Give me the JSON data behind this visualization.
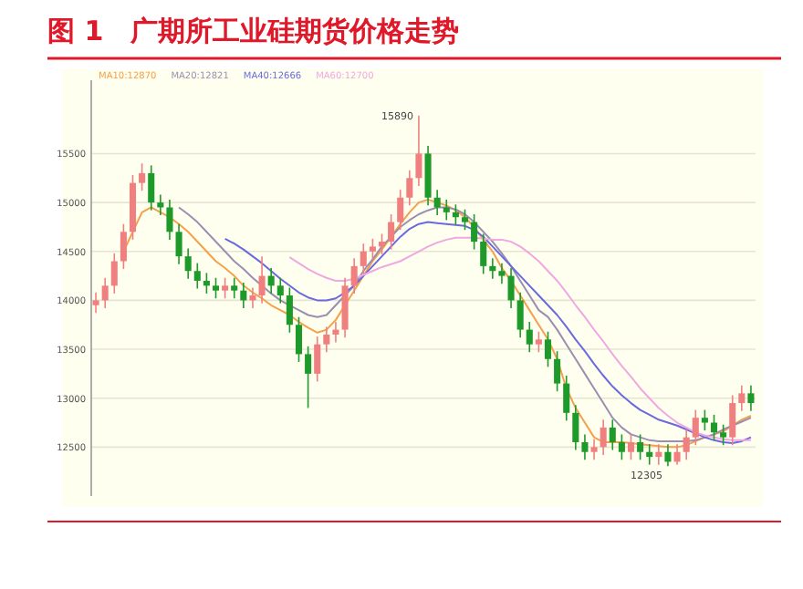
{
  "chart_data": {
    "type": "candlestick",
    "title": "图 1　广期所工业硅期货价格走势",
    "categories": [
      null,
      null,
      null,
      null,
      null,
      null,
      null,
      null,
      null,
      null,
      null,
      null,
      null,
      null,
      null,
      null,
      null,
      null,
      null,
      null,
      null,
      null,
      null,
      null,
      null,
      null,
      null,
      null,
      null,
      null,
      null,
      null,
      null,
      null,
      null,
      null,
      null,
      null,
      null,
      null,
      null,
      null,
      null,
      null,
      null,
      null,
      null,
      null,
      null,
      null,
      null,
      null,
      null,
      null,
      null,
      null,
      null,
      null,
      null,
      null,
      null,
      null,
      null,
      null,
      null,
      null,
      null,
      null,
      null,
      null,
      null,
      null
    ],
    "ohlc": [
      [
        13950,
        14080,
        13870,
        14000
      ],
      [
        14000,
        14230,
        13920,
        14150
      ],
      [
        14150,
        14480,
        14070,
        14400
      ],
      [
        14400,
        14780,
        14320,
        14700
      ],
      [
        14700,
        15280,
        14620,
        15200
      ],
      [
        15200,
        15400,
        15120,
        15300
      ],
      [
        15300,
        15380,
        14920,
        15000
      ],
      [
        15000,
        15080,
        14870,
        14950
      ],
      [
        14950,
        15030,
        14620,
        14700
      ],
      [
        14700,
        14780,
        14370,
        14450
      ],
      [
        14450,
        14530,
        14220,
        14300
      ],
      [
        14300,
        14380,
        14120,
        14200
      ],
      [
        14200,
        14280,
        14070,
        14150
      ],
      [
        14150,
        14230,
        14020,
        14100
      ],
      [
        14100,
        14230,
        14020,
        14150
      ],
      [
        14150,
        14230,
        14020,
        14100
      ],
      [
        14100,
        14180,
        13920,
        14000
      ],
      [
        14000,
        14130,
        13920,
        14050
      ],
      [
        14050,
        14450,
        13970,
        14250
      ],
      [
        14250,
        14330,
        14070,
        14150
      ],
      [
        14150,
        14230,
        13970,
        14050
      ],
      [
        14050,
        14130,
        13670,
        13750
      ],
      [
        13750,
        13830,
        13370,
        13450
      ],
      [
        13450,
        13530,
        12900,
        13250
      ],
      [
        13250,
        13630,
        13170,
        13550
      ],
      [
        13550,
        13730,
        13470,
        13650
      ],
      [
        13650,
        13780,
        13570,
        13700
      ],
      [
        13700,
        14230,
        13620,
        14150
      ],
      [
        14150,
        14430,
        14070,
        14350
      ],
      [
        14350,
        14580,
        14270,
        14500
      ],
      [
        14500,
        14630,
        14420,
        14550
      ],
      [
        14550,
        14680,
        14470,
        14600
      ],
      [
        14600,
        14880,
        14520,
        14800
      ],
      [
        14800,
        15130,
        14720,
        15050
      ],
      [
        15050,
        15330,
        14970,
        15250
      ],
      [
        15250,
        15890,
        15170,
        15500
      ],
      [
        15500,
        15580,
        14970,
        15050
      ],
      [
        15050,
        15130,
        14870,
        14950
      ],
      [
        14950,
        15030,
        14820,
        14900
      ],
      [
        14900,
        14980,
        14770,
        14850
      ],
      [
        14850,
        14930,
        14720,
        14800
      ],
      [
        14800,
        14880,
        14520,
        14600
      ],
      [
        14600,
        14680,
        14270,
        14350
      ],
      [
        14350,
        14430,
        14220,
        14300
      ],
      [
        14300,
        14380,
        14170,
        14250
      ],
      [
        14250,
        14330,
        13920,
        14000
      ],
      [
        14000,
        14080,
        13620,
        13700
      ],
      [
        13700,
        13780,
        13470,
        13550
      ],
      [
        13550,
        13680,
        13470,
        13600
      ],
      [
        13600,
        13680,
        13320,
        13400
      ],
      [
        13400,
        13480,
        13070,
        13150
      ],
      [
        13150,
        13230,
        12770,
        12850
      ],
      [
        12850,
        12930,
        12470,
        12550
      ],
      [
        12550,
        12630,
        12370,
        12450
      ],
      [
        12450,
        12580,
        12370,
        12500
      ],
      [
        12500,
        12780,
        12420,
        12700
      ],
      [
        12700,
        12780,
        12470,
        12550
      ],
      [
        12550,
        12630,
        12370,
        12450
      ],
      [
        12450,
        12630,
        12370,
        12550
      ],
      [
        12550,
        12630,
        12370,
        12450
      ],
      [
        12450,
        12530,
        12320,
        12400
      ],
      [
        12400,
        12530,
        12320,
        12450
      ],
      [
        12450,
        12530,
        12305,
        12350
      ],
      [
        12350,
        12530,
        12320,
        12450
      ],
      [
        12450,
        12680,
        12370,
        12600
      ],
      [
        12600,
        12880,
        12520,
        12800
      ],
      [
        12800,
        12880,
        12670,
        12750
      ],
      [
        12750,
        12830,
        12570,
        12650
      ],
      [
        12650,
        12730,
        12520,
        12600
      ],
      [
        12600,
        13030,
        12520,
        12950
      ],
      [
        12950,
        13130,
        12870,
        13050
      ],
      [
        13050,
        13130,
        12870,
        12950
      ]
    ],
    "series": [
      {
        "name": "MA10:12870",
        "type": "line",
        "color": "#f5a04a",
        "values": [
          null,
          null,
          null,
          14500,
          14700,
          14900,
          14950,
          14900,
          14850,
          14780,
          14700,
          14600,
          14500,
          14400,
          14330,
          14250,
          14150,
          14080,
          14020,
          13950,
          13900,
          13850,
          13780,
          13720,
          13670,
          13700,
          13800,
          13950,
          14100,
          14250,
          14400,
          14520,
          14650,
          14780,
          14900,
          15000,
          15030,
          15000,
          14970,
          14920,
          14850,
          14750,
          14620,
          14500,
          14330,
          14200,
          14050,
          13900,
          13750,
          13600,
          13400,
          13100,
          12900,
          12750,
          12600,
          12550,
          12550,
          12550,
          12540,
          12530,
          12520,
          12510,
          12500,
          12500,
          12520,
          12560,
          12600,
          12630,
          12660,
          12720,
          12780,
          12820
        ]
      },
      {
        "name": "MA20:12821",
        "type": "line",
        "color": "#9a8fb0",
        "values": [
          null,
          null,
          null,
          null,
          null,
          null,
          null,
          null,
          null,
          14950,
          14880,
          14800,
          14700,
          14600,
          14500,
          14400,
          14320,
          14230,
          14150,
          14070,
          14000,
          13950,
          13900,
          13850,
          13830,
          13850,
          13950,
          14050,
          14150,
          14300,
          14420,
          14550,
          14650,
          14750,
          14820,
          14880,
          14920,
          14950,
          14950,
          14930,
          14880,
          14800,
          14700,
          14600,
          14480,
          14350,
          14200,
          14050,
          13900,
          13830,
          13700,
          13550,
          13400,
          13250,
          13100,
          12950,
          12800,
          12700,
          12630,
          12600,
          12570,
          12560,
          12560,
          12560,
          12560,
          12570,
          12600,
          12630,
          12680,
          12720,
          12760,
          12800
        ]
      },
      {
        "name": "MA40:12666",
        "type": "line",
        "color": "#6a6ae0",
        "values": [
          null,
          null,
          null,
          null,
          null,
          null,
          null,
          null,
          null,
          null,
          null,
          null,
          null,
          null,
          14630,
          14580,
          14520,
          14450,
          14380,
          14300,
          14220,
          14150,
          14080,
          14030,
          14000,
          14000,
          14020,
          14080,
          14150,
          14250,
          14350,
          14450,
          14550,
          14650,
          14730,
          14780,
          14800,
          14790,
          14780,
          14770,
          14760,
          14720,
          14650,
          14550,
          14450,
          14350,
          14250,
          14150,
          14050,
          13950,
          13850,
          13730,
          13600,
          13480,
          13350,
          13230,
          13120,
          13030,
          12950,
          12880,
          12830,
          12780,
          12750,
          12720,
          12680,
          12640,
          12600,
          12570,
          12550,
          12540,
          12560,
          12600
        ]
      },
      {
        "name": "MA60:12700",
        "type": "line",
        "color": "#f0a8e0",
        "values": [
          null,
          null,
          null,
          null,
          null,
          null,
          null,
          null,
          null,
          null,
          null,
          null,
          null,
          null,
          null,
          null,
          null,
          null,
          null,
          null,
          null,
          14440,
          14380,
          14320,
          14270,
          14230,
          14200,
          14200,
          14220,
          14260,
          14300,
          14340,
          14370,
          14400,
          14450,
          14500,
          14550,
          14590,
          14620,
          14640,
          14640,
          14640,
          14630,
          14620,
          14620,
          14600,
          14550,
          14480,
          14400,
          14300,
          14200,
          14080,
          13950,
          13830,
          13700,
          13580,
          13450,
          13330,
          13220,
          13100,
          13000,
          12900,
          12820,
          12750,
          12700,
          12650,
          12620,
          12600,
          12580,
          12570,
          12570,
          12570
        ]
      }
    ],
    "ylim": [
      12000,
      16250
    ],
    "yticks": [
      12500,
      13000,
      13500,
      14000,
      14500,
      15000,
      15500
    ],
    "grid": "y",
    "legend": "top left",
    "tick_labels": "y",
    "annotations": [
      "15890",
      "12305"
    ]
  }
}
